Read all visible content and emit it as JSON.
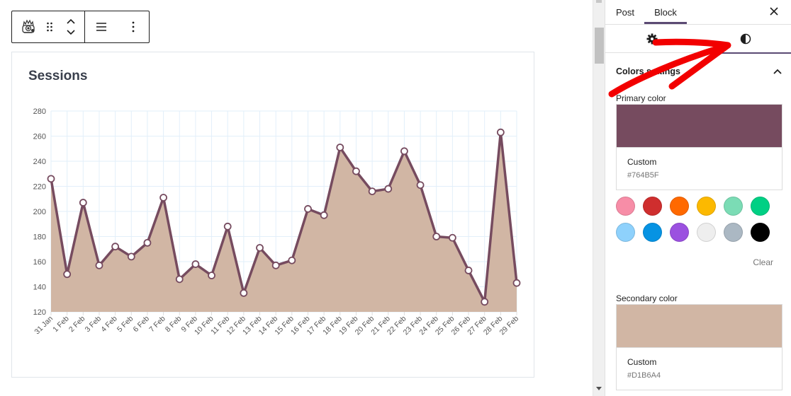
{
  "toolbar": {
    "block_icon": "monsterinsights-mascot-icon",
    "drag_icon": "drag-handle-icon",
    "move_icon": "move-up-down-icon",
    "align_icon": "align-icon",
    "more_icon": "more-options-icon"
  },
  "card": {
    "title": "Sessions"
  },
  "chart_data": {
    "type": "area",
    "title": "Sessions",
    "xlabel": "",
    "ylabel": "",
    "ylim": [
      120,
      280
    ],
    "yticks": [
      120,
      140,
      160,
      180,
      200,
      220,
      240,
      260,
      280
    ],
    "grid": true,
    "legend": "none",
    "categories": [
      "31 Jan",
      "1 Feb",
      "2 Feb",
      "3 Feb",
      "4 Feb",
      "5 Feb",
      "6 Feb",
      "7 Feb",
      "8 Feb",
      "9 Feb",
      "10 Feb",
      "11 Feb",
      "12 Feb",
      "13 Feb",
      "14 Feb",
      "15 Feb",
      "16 Feb",
      "17 Feb",
      "18 Feb",
      "19 Feb",
      "20 Feb",
      "21 Feb",
      "22 Feb",
      "23 Feb",
      "24 Feb",
      "25 Feb",
      "26 Feb",
      "27 Feb",
      "28 Feb",
      "29 Feb"
    ],
    "series": [
      {
        "name": "Sessions",
        "values": [
          226,
          150,
          207,
          157,
          172,
          164,
          175,
          211,
          146,
          158,
          149,
          188,
          135,
          171,
          157,
          161,
          202,
          197,
          251,
          232,
          216,
          218,
          248,
          221,
          180,
          179,
          153,
          128,
          263,
          143
        ],
        "line_color": "#764B5F",
        "fill_color": "#D1B6A4"
      }
    ]
  },
  "sidebar": {
    "tabs": [
      {
        "label": "Post",
        "active": false
      },
      {
        "label": "Block",
        "active": true
      }
    ],
    "close_icon": "close-icon",
    "subtabs": [
      {
        "name": "settings",
        "icon": "gear-icon",
        "active": false
      },
      {
        "name": "styles",
        "icon": "contrast-icon",
        "active": true
      }
    ],
    "panel": {
      "title": "Colors settings",
      "toggle_icon": "chevron-up-icon",
      "primary": {
        "label": "Primary color",
        "name": "Custom",
        "hex": "#764B5F"
      },
      "palette": [
        "#F78DA7",
        "#CF2E2E",
        "#FF6900",
        "#FCB900",
        "#7BDCB5",
        "#00D084",
        "#8ED1FC",
        "#0693E3",
        "#9B51E0",
        "#EEEEEE",
        "#ABB8C3",
        "#000000"
      ],
      "clear_label": "Clear",
      "secondary": {
        "label": "Secondary color",
        "name": "Custom",
        "hex": "#D1B6A4"
      }
    }
  },
  "annotation": {
    "arrow_color": "#F20000"
  }
}
